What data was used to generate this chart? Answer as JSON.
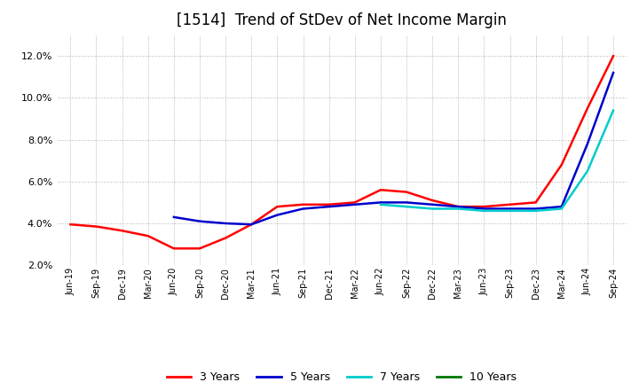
{
  "title": "[1514]  Trend of StDev of Net Income Margin",
  "ylim": [
    0.02,
    0.13
  ],
  "yticks": [
    0.02,
    0.04,
    0.06,
    0.08,
    0.1,
    0.12
  ],
  "background_color": "#ffffff",
  "grid_color": "#b0b0b0",
  "title_fontsize": 12,
  "series": {
    "3 Years": {
      "color": "#ff0000",
      "values": [
        0.0395,
        0.0385,
        0.0365,
        0.034,
        0.028,
        0.028,
        0.033,
        0.0395,
        0.048,
        0.049,
        0.049,
        0.05,
        0.056,
        0.055,
        0.051,
        0.048,
        0.048,
        0.049,
        0.05,
        0.068,
        0.095,
        0.12
      ]
    },
    "5 Years": {
      "color": "#0000cc",
      "values": [
        null,
        null,
        null,
        null,
        0.043,
        0.041,
        0.04,
        0.0395,
        0.044,
        0.047,
        0.048,
        0.049,
        0.05,
        0.05,
        0.049,
        0.048,
        0.047,
        0.047,
        0.047,
        0.048,
        0.078,
        0.112
      ]
    },
    "7 Years": {
      "color": "#00cccc",
      "values": [
        null,
        null,
        null,
        null,
        null,
        null,
        null,
        null,
        null,
        null,
        null,
        null,
        0.049,
        0.048,
        0.047,
        0.047,
        0.046,
        0.046,
        0.046,
        0.047,
        0.065,
        0.094
      ]
    },
    "10 Years": {
      "color": "#007700",
      "values": [
        null,
        null,
        null,
        null,
        null,
        null,
        null,
        null,
        null,
        null,
        null,
        null,
        null,
        null,
        null,
        null,
        null,
        null,
        null,
        null,
        null,
        null
      ]
    }
  },
  "xtick_labels": [
    "Jun-19",
    "Sep-19",
    "Dec-19",
    "Mar-20",
    "Jun-20",
    "Sep-20",
    "Dec-20",
    "Mar-21",
    "Jun-21",
    "Sep-21",
    "Dec-21",
    "Mar-22",
    "Jun-22",
    "Sep-22",
    "Dec-22",
    "Mar-23",
    "Jun-23",
    "Sep-23",
    "Dec-23",
    "Mar-24",
    "Jun-24",
    "Sep-24"
  ],
  "legend_labels": [
    "3 Years",
    "5 Years",
    "7 Years",
    "10 Years"
  ],
  "legend_colors": [
    "#ff0000",
    "#0000cc",
    "#00cccc",
    "#007700"
  ]
}
